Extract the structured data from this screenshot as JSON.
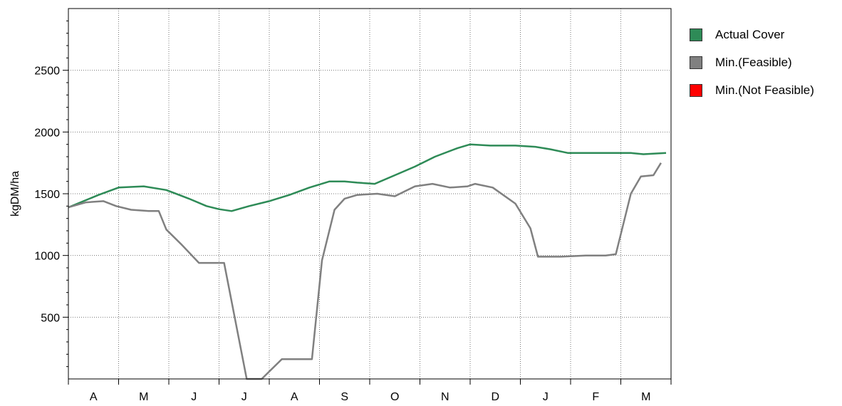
{
  "chart_data": {
    "type": "line",
    "title": "",
    "xlabel": "",
    "ylabel": "kgDM/ha",
    "ylim": [
      0,
      3000
    ],
    "yticks": [
      500,
      1000,
      1500,
      2000,
      2500
    ],
    "grid": true,
    "legend_placement": "right",
    "categories": [
      "A",
      "M",
      "J",
      "J",
      "A",
      "S",
      "O",
      "N",
      "D",
      "J",
      "F",
      "M"
    ],
    "x_range": [
      0,
      12
    ],
    "series": [
      {
        "name": "Actual Cover",
        "color": "#2e8b57",
        "x": [
          0,
          0.3,
          0.6,
          1.0,
          1.5,
          1.95,
          2.4,
          2.75,
          3.0,
          3.25,
          3.6,
          4.0,
          4.4,
          4.8,
          5.2,
          5.5,
          5.75,
          6.1,
          6.5,
          6.9,
          7.3,
          7.75,
          8.0,
          8.4,
          8.9,
          9.3,
          9.6,
          9.95,
          10.4,
          10.8,
          11.2,
          11.45,
          11.9
        ],
        "values": [
          1390,
          1440,
          1490,
          1550,
          1560,
          1530,
          1460,
          1400,
          1375,
          1360,
          1400,
          1440,
          1490,
          1550,
          1600,
          1600,
          1590,
          1580,
          1650,
          1720,
          1800,
          1870,
          1900,
          1890,
          1890,
          1880,
          1860,
          1830,
          1830,
          1830,
          1830,
          1820,
          1830
        ]
      },
      {
        "name": "Min.(Feasible)",
        "color": "#808080",
        "x": [
          0,
          0.35,
          0.7,
          0.95,
          1.25,
          1.6,
          1.8,
          1.95,
          2.25,
          2.6,
          2.95,
          3.0,
          3.1,
          3.55,
          3.85,
          4.25,
          4.65,
          4.85,
          5.05,
          5.3,
          5.5,
          5.75,
          6.15,
          6.5,
          6.7,
          6.9,
          7.25,
          7.6,
          7.95,
          8.1,
          8.45,
          8.9,
          9.2,
          9.35,
          9.8,
          10.3,
          10.7,
          10.9,
          11.2,
          11.4,
          11.65,
          11.8
        ],
        "values": [
          1390,
          1430,
          1440,
          1400,
          1370,
          1360,
          1360,
          1210,
          1090,
          940,
          940,
          940,
          940,
          0,
          0,
          160,
          160,
          160,
          960,
          1370,
          1460,
          1490,
          1500,
          1480,
          1520,
          1560,
          1580,
          1550,
          1560,
          1580,
          1550,
          1420,
          1220,
          990,
          990,
          1000,
          1000,
          1010,
          1500,
          1640,
          1650,
          1750
        ]
      },
      {
        "name": "Min.(Not Feasible)",
        "color": "#ff0000",
        "x": [],
        "values": []
      }
    ]
  }
}
